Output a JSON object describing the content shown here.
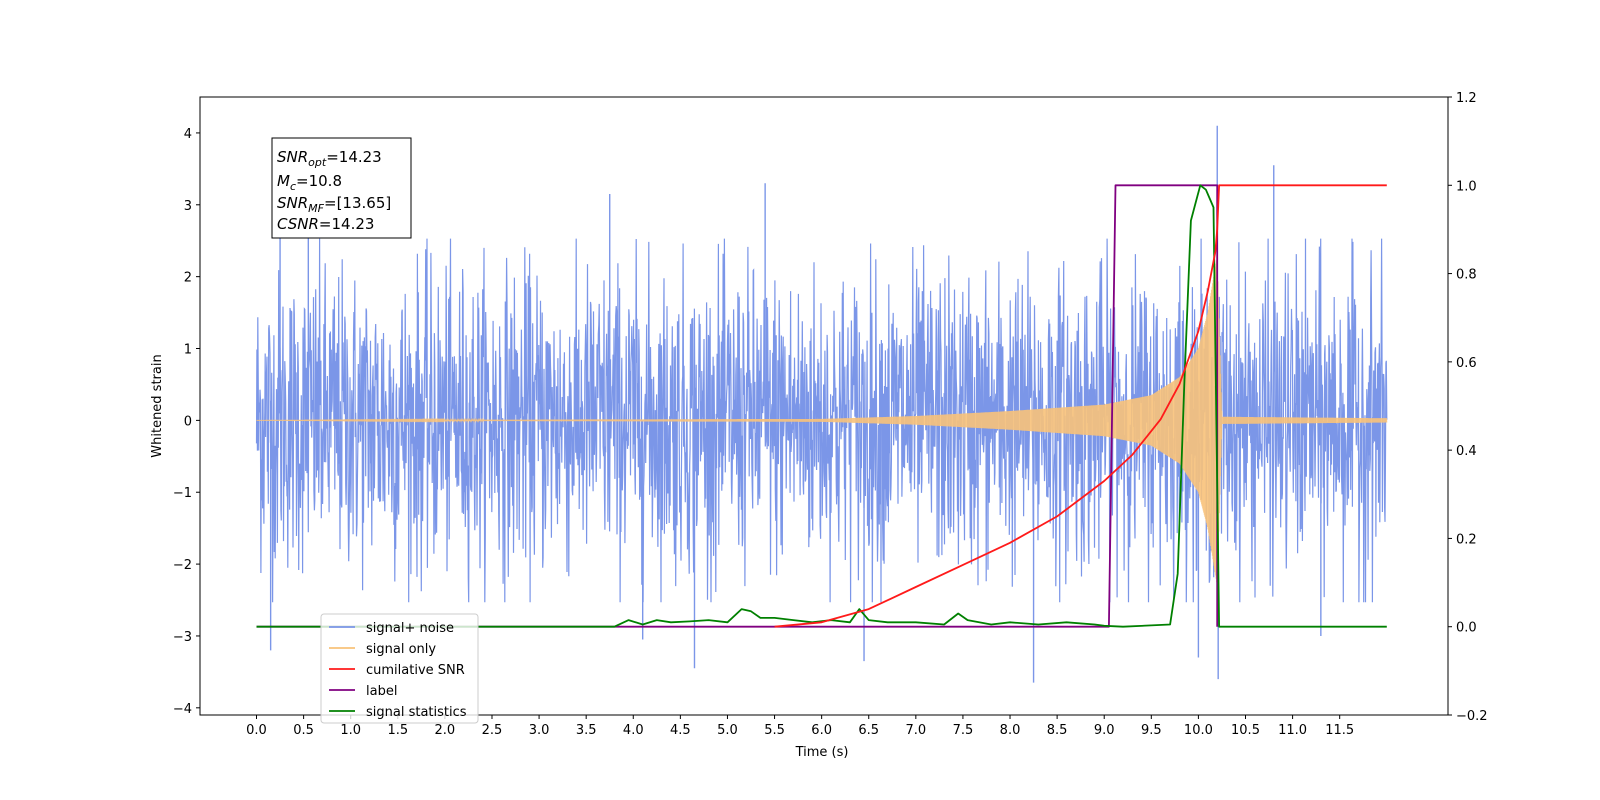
{
  "chart_data": {
    "type": "line",
    "xlabel": "Time (s)",
    "ylabel": "Whitened strain",
    "xlim": [
      -0.6,
      12.65
    ],
    "ylim_left": [
      -4.1,
      4.5
    ],
    "ylim_right": [
      -0.2,
      1.2
    ],
    "x_ticks": [
      "0.0",
      "0.5",
      "1.0",
      "1.5",
      "2.0",
      "2.5",
      "3.0",
      "3.5",
      "4.0",
      "4.5",
      "5.0",
      "5.5",
      "6.0",
      "6.5",
      "7.0",
      "7.5",
      "8.0",
      "8.5",
      "9.0",
      "9.5",
      "10.0",
      "10.5",
      "11.0",
      "11.5"
    ],
    "y_ticks_left": [
      "4",
      "3",
      "2",
      "1",
      "0",
      "−1",
      "−2",
      "−3",
      "−4"
    ],
    "y_ticks_right": [
      "1.2",
      "1.0",
      "0.8",
      "0.6",
      "0.4",
      "0.2",
      "0.0",
      "−0.2"
    ],
    "annotation": {
      "line1_main": "SNR",
      "line1_sub": "opt",
      "line1_val": "=14.23",
      "line2_main": "M",
      "line2_sub": "c",
      "line2_val": "=10.8",
      "line3_main": "SNR",
      "line3_sub": "MF",
      "line3_val": "=[13.65]",
      "line4_main": "CSNR",
      "line4_val": "=14.23"
    },
    "legend": {
      "placement": "lower-left",
      "entries": [
        {
          "label": "signal+ noise",
          "color": "#7b96e8"
        },
        {
          "label": "signal only",
          "color": "#f8c27a"
        },
        {
          "label": "cumilative SNR",
          "color": "#ff1a1a"
        },
        {
          "label": "label",
          "color": "#800080"
        },
        {
          "label": "signal statistics",
          "color": "#008000"
        }
      ]
    },
    "series": [
      {
        "name": "signal+ noise",
        "axis": "left",
        "color": "#7b96e8",
        "x_range": [
          0.0,
          12.0
        ],
        "typical_amplitude": 1.4,
        "envelope": [
          [
            0.0,
            2.2
          ],
          [
            6.0,
            2.2
          ],
          [
            10.2,
            2.2
          ],
          [
            12.0,
            2.2
          ]
        ],
        "spikes": [
          [
            0.15,
            -3.2
          ],
          [
            0.25,
            2.6
          ],
          [
            0.55,
            3.0
          ],
          [
            3.75,
            3.15
          ],
          [
            5.4,
            3.3
          ],
          [
            4.65,
            -3.45
          ],
          [
            6.45,
            -3.35
          ],
          [
            8.25,
            -3.65
          ],
          [
            10.0,
            -3.3
          ],
          [
            10.2,
            4.1
          ],
          [
            10.21,
            -3.6
          ],
          [
            10.8,
            3.55
          ],
          [
            11.3,
            -3.0
          ],
          [
            4.1,
            -3.05
          ]
        ]
      },
      {
        "name": "signal only",
        "axis": "left",
        "color": "#f8c27a",
        "x_range": [
          0.0,
          12.0
        ],
        "envelope": [
          [
            0.0,
            0.0
          ],
          [
            6.0,
            0.02
          ],
          [
            7.0,
            0.06
          ],
          [
            8.0,
            0.13
          ],
          [
            9.0,
            0.22
          ],
          [
            9.5,
            0.35
          ],
          [
            9.8,
            0.6
          ],
          [
            10.0,
            1.0
          ],
          [
            10.1,
            1.5
          ],
          [
            10.2,
            2.3
          ],
          [
            10.25,
            0.05
          ],
          [
            12.0,
            0.03
          ]
        ]
      },
      {
        "name": "cumilative SNR",
        "axis": "right",
        "color": "#ff1a1a",
        "x": [
          5.5,
          6.0,
          6.5,
          7.0,
          7.5,
          8.0,
          8.5,
          9.0,
          9.3,
          9.6,
          9.8,
          10.0,
          10.1,
          10.18,
          10.2,
          10.22,
          12.0
        ],
        "y": [
          0.0,
          0.01,
          0.04,
          0.09,
          0.14,
          0.19,
          0.25,
          0.33,
          0.39,
          0.47,
          0.55,
          0.67,
          0.76,
          0.85,
          0.9,
          1.0,
          1.0
        ]
      },
      {
        "name": "label",
        "axis": "right",
        "color": "#800080",
        "x": [
          0.0,
          9.05,
          9.12,
          10.2,
          10.2
        ],
        "y": [
          0.0,
          0.0,
          1.0,
          1.0,
          0.0
        ]
      },
      {
        "name": "signal statistics",
        "axis": "right",
        "color": "#008000",
        "x": [
          0.0,
          3.8,
          3.95,
          4.1,
          4.25,
          4.4,
          4.6,
          4.8,
          5.0,
          5.15,
          5.25,
          5.35,
          5.5,
          5.7,
          5.9,
          6.1,
          6.3,
          6.4,
          6.5,
          6.7,
          7.0,
          7.3,
          7.45,
          7.55,
          7.8,
          8.0,
          8.3,
          8.6,
          8.9,
          9.0,
          9.2,
          9.7,
          9.78,
          9.85,
          9.92,
          9.97,
          10.02,
          10.08,
          10.12,
          10.16,
          10.22,
          12.0
        ],
        "y": [
          0.0,
          0.0,
          0.015,
          0.005,
          0.015,
          0.01,
          0.012,
          0.015,
          0.01,
          0.04,
          0.035,
          0.02,
          0.02,
          0.015,
          0.01,
          0.015,
          0.01,
          0.04,
          0.015,
          0.01,
          0.01,
          0.005,
          0.03,
          0.015,
          0.005,
          0.01,
          0.005,
          0.01,
          0.005,
          0.002,
          0.0,
          0.005,
          0.12,
          0.55,
          0.92,
          0.96,
          1.0,
          0.99,
          0.97,
          0.95,
          0.0,
          0.0
        ]
      }
    ]
  }
}
